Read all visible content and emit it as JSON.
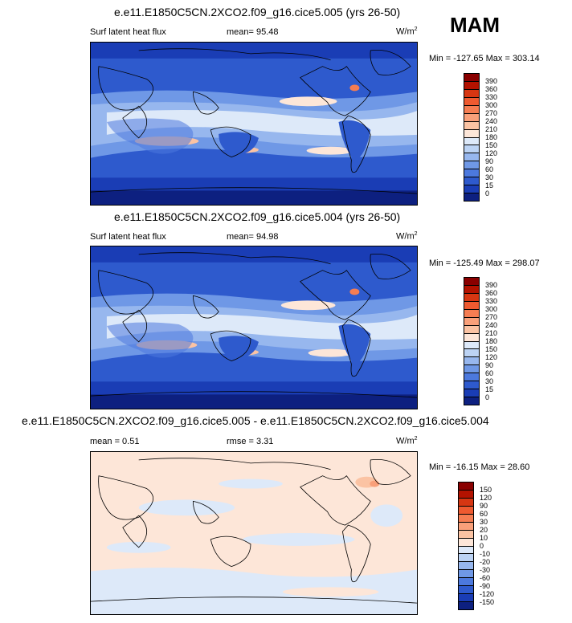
{
  "season": "MAM",
  "panels": [
    {
      "title": "e.e11.E1850C5CN.2XCO2.f09_g16.cice5.005 (yrs 26-50)",
      "variable": "Surf latent heat flux",
      "stat1": "mean=  95.48",
      "stat2": "",
      "units_base": "W/m",
      "units_exp": "2",
      "minmax": "Min = -127.65 Max = 303.14",
      "colorbar": {
        "labels": [
          "390",
          "360",
          "330",
          "300",
          "270",
          "240",
          "210",
          "180",
          "150",
          "120",
          "90",
          "60",
          "30",
          "15",
          "0"
        ],
        "colors": [
          "#8a0000",
          "#b31200",
          "#d63612",
          "#ee5a30",
          "#f57d52",
          "#f9a07a",
          "#fbc3a3",
          "#fde6d8",
          "#dde9f9",
          "#bcd3f4",
          "#97b7ee",
          "#6f98e6",
          "#4c79de",
          "#2e5acd",
          "#1a3db5",
          "#0d2080"
        ]
      }
    },
    {
      "title": "e.e11.E1850C5CN.2XCO2.f09_g16.cice5.004 (yrs 26-50)",
      "variable": "Surf latent heat flux",
      "stat1": "mean=  94.98",
      "stat2": "",
      "units_base": "W/m",
      "units_exp": "2",
      "minmax": "Min = -125.49 Max = 298.07",
      "colorbar": {
        "labels": [
          "390",
          "360",
          "330",
          "300",
          "270",
          "240",
          "210",
          "180",
          "150",
          "120",
          "90",
          "60",
          "30",
          "15",
          "0"
        ],
        "colors": [
          "#8a0000",
          "#b31200",
          "#d63612",
          "#ee5a30",
          "#f57d52",
          "#f9a07a",
          "#fbc3a3",
          "#fde6d8",
          "#dde9f9",
          "#bcd3f4",
          "#97b7ee",
          "#6f98e6",
          "#4c79de",
          "#2e5acd",
          "#1a3db5",
          "#0d2080"
        ]
      }
    },
    {
      "title": "e.e11.E1850C5CN.2XCO2.f09_g16.cice5.005 - e.e11.E1850C5CN.2XCO2.f09_g16.cice5.004",
      "variable": "",
      "stat1": "mean =  0.51",
      "stat2": "rmse =   3.31",
      "units_base": "W/m",
      "units_exp": "2",
      "minmax": "Min = -16.15 Max = 28.60",
      "colorbar": {
        "labels": [
          "150",
          "120",
          "90",
          "60",
          "30",
          "20",
          "10",
          "0",
          "-10",
          "-20",
          "-30",
          "-60",
          "-90",
          "-120",
          "-150"
        ],
        "colors": [
          "#8a0000",
          "#b31200",
          "#d63612",
          "#ee5a30",
          "#f57d52",
          "#f9a07a",
          "#fbc3a3",
          "#fde6d8",
          "#dde9f9",
          "#bcd3f4",
          "#97b7ee",
          "#6f98e6",
          "#4c79de",
          "#2e5acd",
          "#1a3db5",
          "#0d2080"
        ]
      }
    }
  ]
}
